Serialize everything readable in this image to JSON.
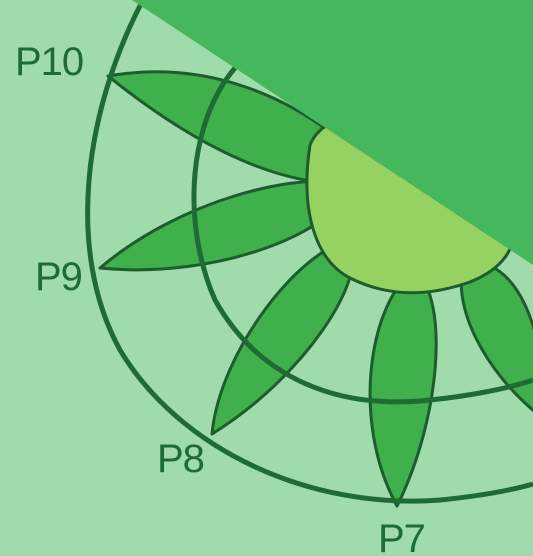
{
  "colors": {
    "background": "#a0dcab",
    "ring": "#1e6b35",
    "petal": "#3fb04b",
    "center": "#95d262",
    "overlay": "#45b85d",
    "label": "#1e6b35"
  },
  "diagram": {
    "kind": "radial petal diagram (partial view)",
    "labels": [
      {
        "id": "p10",
        "text": "P10"
      },
      {
        "id": "p9",
        "text": "P9"
      },
      {
        "id": "p8",
        "text": "P8"
      },
      {
        "id": "p7",
        "text": "P7"
      }
    ]
  }
}
